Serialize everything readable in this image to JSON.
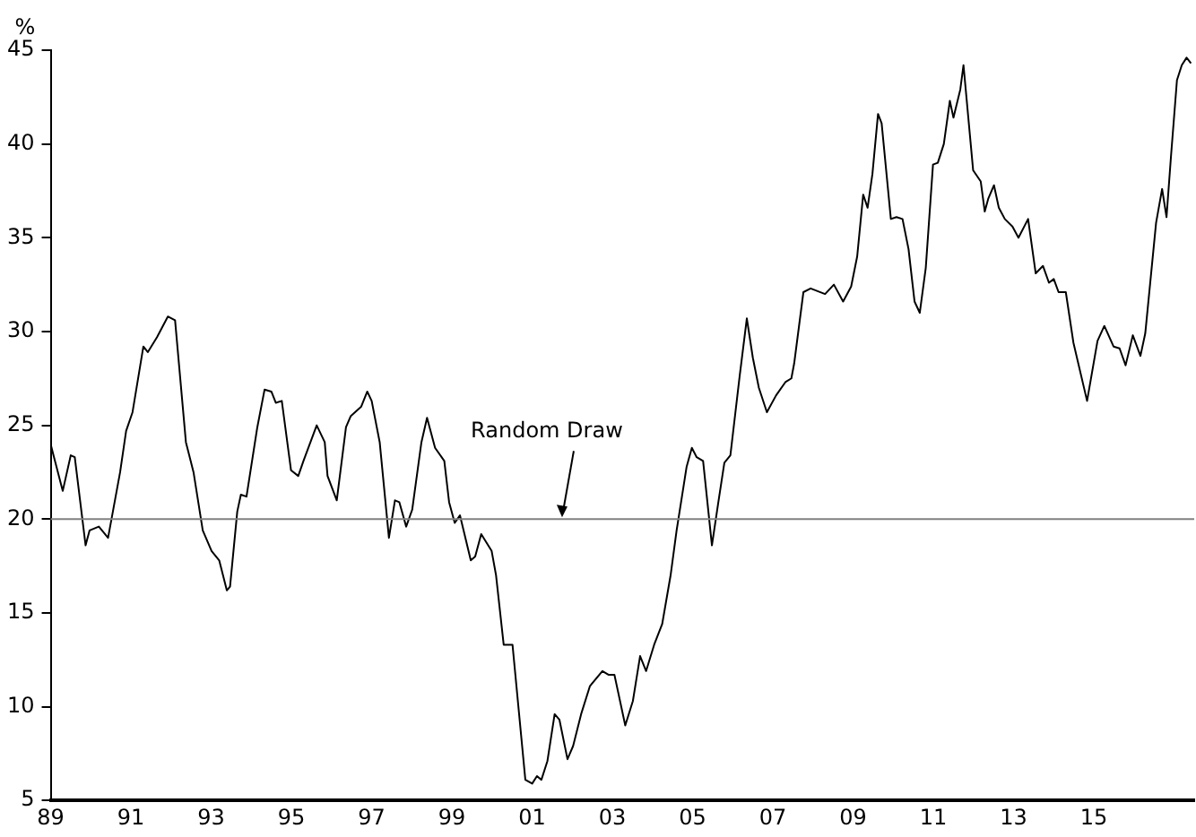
{
  "chart_data": {
    "type": "line",
    "ylabel": "%",
    "xlim": [
      1989,
      2017.5
    ],
    "ylim": [
      5,
      45
    ],
    "yticks": [
      5,
      10,
      15,
      20,
      25,
      30,
      35,
      40,
      45
    ],
    "xticks": [
      {
        "value": 1989,
        "label": "89"
      },
      {
        "value": 1991,
        "label": "91"
      },
      {
        "value": 1993,
        "label": "93"
      },
      {
        "value": 1995,
        "label": "95"
      },
      {
        "value": 1997,
        "label": "97"
      },
      {
        "value": 1999,
        "label": "99"
      },
      {
        "value": 2001,
        "label": "01"
      },
      {
        "value": 2003,
        "label": "03"
      },
      {
        "value": 2005,
        "label": "05"
      },
      {
        "value": 2007,
        "label": "07"
      },
      {
        "value": 2009,
        "label": "09"
      },
      {
        "value": 2011,
        "label": "11"
      },
      {
        "value": 2013,
        "label": "13"
      },
      {
        "value": 2015,
        "label": "15"
      }
    ],
    "grid": false,
    "legend": false,
    "marker": "none",
    "line_style": "solid",
    "ref_lines": [
      {
        "axis": "y",
        "value": 20,
        "label": "Random Draw",
        "color": "#808080"
      }
    ],
    "series": [
      {
        "color": "#000000",
        "x": [
          1989.01,
          1989.3,
          1989.5,
          1989.6,
          1989.87,
          1989.97,
          1990.2,
          1990.43,
          1990.55,
          1990.73,
          1990.88,
          1991.04,
          1991.31,
          1991.42,
          1991.65,
          1991.92,
          1992.1,
          1992.37,
          1992.56,
          1992.79,
          1993.01,
          1993.2,
          1993.39,
          1993.47,
          1993.65,
          1993.74,
          1993.88,
          1994.15,
          1994.33,
          1994.5,
          1994.61,
          1994.76,
          1994.99,
          1995.17,
          1995.3,
          1995.63,
          1995.83,
          1995.9,
          1996.13,
          1996.36,
          1996.48,
          1996.74,
          1996.89,
          1997.0,
          1997.2,
          1997.43,
          1997.58,
          1997.69,
          1997.86,
          1998.01,
          1998.24,
          1998.38,
          1998.58,
          1998.81,
          1998.93,
          1999.07,
          1999.2,
          1999.47,
          1999.58,
          1999.73,
          1999.99,
          2000.1,
          2000.29,
          2000.51,
          2000.83,
          2001.0,
          2001.12,
          2001.23,
          2001.38,
          2001.56,
          2001.68,
          2001.88,
          2002.02,
          2002.22,
          2002.44,
          2002.75,
          2002.9,
          2003.05,
          2003.32,
          2003.51,
          2003.69,
          2003.84,
          2004.04,
          2004.24,
          2004.45,
          2004.6,
          2004.85,
          2004.98,
          2005.1,
          2005.26,
          2005.48,
          2005.64,
          2005.79,
          2005.94,
          2006.17,
          2006.35,
          2006.5,
          2006.65,
          2006.85,
          2007.08,
          2007.31,
          2007.46,
          2007.53,
          2007.76,
          2007.94,
          2008.3,
          2008.52,
          2008.75,
          2008.95,
          2009.1,
          2009.25,
          2009.36,
          2009.48,
          2009.62,
          2009.71,
          2009.94,
          2010.08,
          2010.23,
          2010.38,
          2010.53,
          2010.66,
          2010.81,
          2010.99,
          2011.11,
          2011.26,
          2011.41,
          2011.5,
          2011.67,
          2011.75,
          2011.99,
          2012.18,
          2012.28,
          2012.37,
          2012.51,
          2012.63,
          2012.78,
          2012.97,
          2013.12,
          2013.36,
          2013.55,
          2013.73,
          2013.88,
          2014.0,
          2014.12,
          2014.3,
          2014.49,
          2014.83,
          2015.09,
          2015.26,
          2015.49,
          2015.64,
          2015.79,
          2015.97,
          2016.16,
          2016.28,
          2016.55,
          2016.7,
          2016.81,
          2016.92,
          2017.07,
          2017.19,
          2017.31,
          2017.42
        ],
        "values": [
          23.9,
          21.5,
          23.4,
          23.3,
          18.6,
          19.4,
          19.6,
          19.0,
          20.4,
          22.5,
          24.7,
          25.7,
          29.2,
          28.9,
          29.7,
          30.8,
          30.6,
          24.1,
          22.5,
          19.4,
          18.3,
          17.8,
          16.2,
          16.4,
          20.4,
          21.3,
          21.2,
          24.9,
          26.9,
          26.8,
          26.2,
          26.3,
          22.6,
          22.3,
          23.1,
          25.0,
          24.1,
          22.3,
          21.0,
          24.9,
          25.5,
          26.0,
          26.8,
          26.3,
          24.1,
          19.0,
          21.0,
          20.9,
          19.6,
          20.5,
          24.1,
          25.4,
          23.8,
          23.1,
          20.9,
          19.8,
          20.2,
          17.8,
          18.0,
          19.2,
          18.3,
          17.0,
          13.3,
          13.3,
          6.1,
          5.9,
          6.3,
          6.1,
          7.1,
          9.6,
          9.3,
          7.2,
          7.9,
          9.6,
          11.1,
          11.9,
          11.7,
          11.7,
          9.0,
          10.3,
          12.7,
          11.9,
          13.3,
          14.4,
          17.0,
          19.4,
          22.8,
          23.8,
          23.3,
          23.1,
          18.6,
          20.9,
          23.0,
          23.4,
          27.6,
          30.7,
          28.6,
          27.0,
          25.7,
          26.6,
          27.3,
          27.5,
          28.3,
          32.1,
          32.3,
          32.0,
          32.5,
          31.6,
          32.4,
          34.0,
          37.3,
          36.6,
          38.4,
          41.6,
          41.1,
          36.0,
          36.1,
          36.0,
          34.4,
          31.6,
          31.0,
          33.4,
          38.9,
          39.0,
          40.0,
          42.3,
          41.4,
          42.9,
          44.2,
          38.6,
          38.0,
          36.4,
          37.1,
          37.8,
          36.6,
          36.0,
          35.6,
          35.0,
          36.0,
          33.1,
          33.5,
          32.6,
          32.8,
          32.1,
          32.1,
          29.4,
          26.3,
          29.5,
          30.3,
          29.2,
          29.1,
          28.2,
          29.8,
          28.7,
          29.9,
          35.8,
          37.6,
          36.1,
          39.3,
          43.4,
          44.2,
          44.6,
          44.3
        ]
      }
    ]
  }
}
